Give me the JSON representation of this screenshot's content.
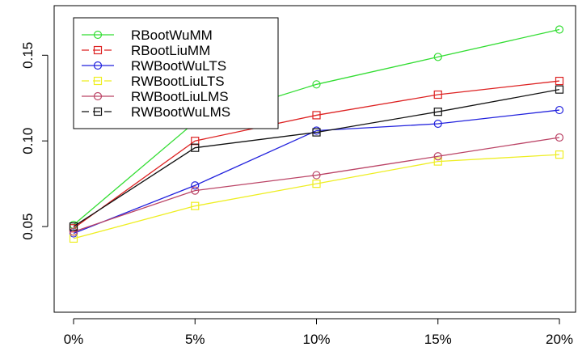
{
  "chart_data": {
    "type": "line",
    "title": "",
    "xlabel": "",
    "ylabel": "",
    "categories": [
      "0%",
      "5%",
      "10%",
      "15%",
      "20%"
    ],
    "ylim": [
      0.0,
      0.175
    ],
    "yticks": [
      0.05,
      0.1,
      0.15
    ],
    "ytick_labels": [
      "0.05",
      "0.10",
      "0.15"
    ],
    "grid": false,
    "legend_position": "top-left",
    "series": [
      {
        "name": "RBootWuMM",
        "color": "#33dd33",
        "marker": "circle",
        "dashed": false,
        "values": [
          0.051,
          0.111,
          0.133,
          0.149,
          0.165
        ]
      },
      {
        "name": "RBootLiuMM",
        "color": "#dd2222",
        "marker": "square",
        "dashed": true,
        "values": [
          0.049,
          0.1,
          0.115,
          0.127,
          0.135
        ]
      },
      {
        "name": "RWBootWuLTS",
        "color": "#2222dd",
        "marker": "circle",
        "dashed": false,
        "values": [
          0.046,
          0.074,
          0.106,
          0.11,
          0.118
        ]
      },
      {
        "name": "RWBootLiuLTS",
        "color": "#eeee22",
        "marker": "square",
        "dashed": true,
        "values": [
          0.043,
          0.062,
          0.075,
          0.088,
          0.092
        ]
      },
      {
        "name": "RWBootLiuLMS",
        "color": "#bb4466",
        "marker": "circle",
        "dashed": false,
        "values": [
          0.047,
          0.071,
          0.08,
          0.091,
          0.102
        ]
      },
      {
        "name": "RWBootWuLMS",
        "color": "#111111",
        "marker": "square",
        "dashed": true,
        "values": [
          0.05,
          0.096,
          0.105,
          0.117,
          0.13
        ]
      }
    ]
  }
}
